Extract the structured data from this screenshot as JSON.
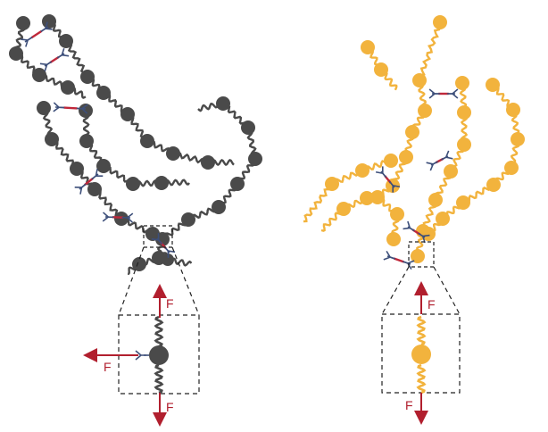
{
  "colors": {
    "left_chain": "#4a4a4a",
    "right_chain": "#f2b33d",
    "crosslink_arm": "#3d4f7a",
    "crosslink_link": "#c0283a",
    "force_arrow": "#b11f2e",
    "inset_border": "#222222"
  },
  "left_panel": {
    "force_up_label": "F",
    "force_left_label": "F",
    "force_down_label": "F"
  },
  "right_panel": {
    "force_up_label": "F",
    "force_down_label": "F"
  },
  "icons": {
    "bead": "circle",
    "crosslinker": "y-shaped-linker",
    "force": "arrow"
  }
}
